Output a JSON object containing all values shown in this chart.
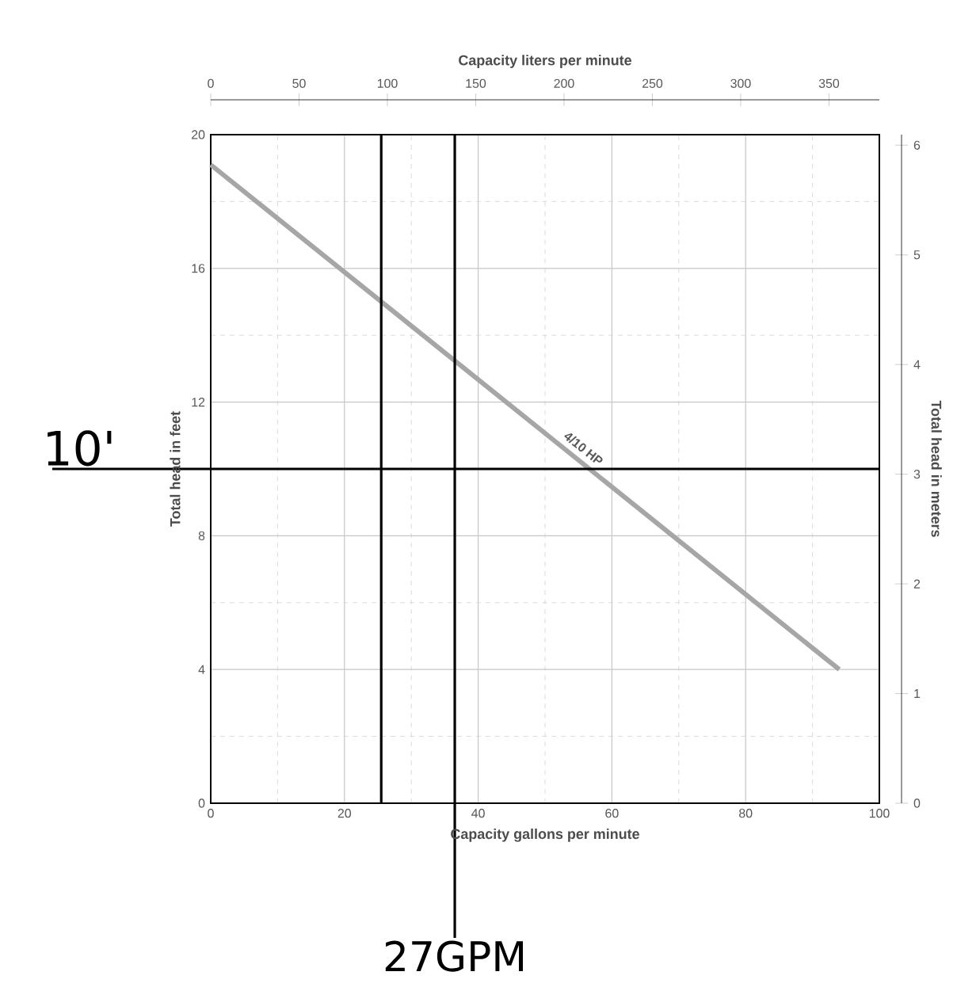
{
  "chart_data": {
    "type": "line",
    "xlabel": "Capacity gallons per minute",
    "ylabel": "Total head in feet",
    "x2label": "Capacity liters per minute",
    "y2label": "Total head in meters",
    "x": [
      0,
      94
    ],
    "series": [
      {
        "color": "#a6a6a6",
        "values": [
          19.1,
          4.0
        ]
      }
    ],
    "xlim": [
      0,
      100
    ],
    "xticks": [
      0,
      20,
      40,
      60,
      80,
      100
    ],
    "ylim": [
      0,
      20
    ],
    "yticks": [
      0,
      4,
      8,
      12,
      16,
      20
    ],
    "x2lim": [
      0,
      378.5
    ],
    "x2ticks": [
      0,
      50,
      100,
      150,
      200,
      250,
      300,
      350
    ],
    "y2lim": [
      0,
      6.096
    ],
    "y2ticks": [
      0,
      1,
      2,
      3,
      4,
      5,
      6
    ],
    "grid": true,
    "marker": "none",
    "line_style": "solid",
    "annotations": [
      {
        "text": "4/10 HP",
        "x": 54.5,
        "y": 10.3
      }
    ],
    "ref_lines": [
      {
        "axis": "y",
        "value": 10,
        "label": "10'",
        "color": "#000000"
      },
      {
        "axis": "x",
        "value": 36.5,
        "label": "27GPM",
        "color": "#000000"
      },
      {
        "axis": "x",
        "value": 25.5,
        "color": "#000000"
      }
    ]
  }
}
